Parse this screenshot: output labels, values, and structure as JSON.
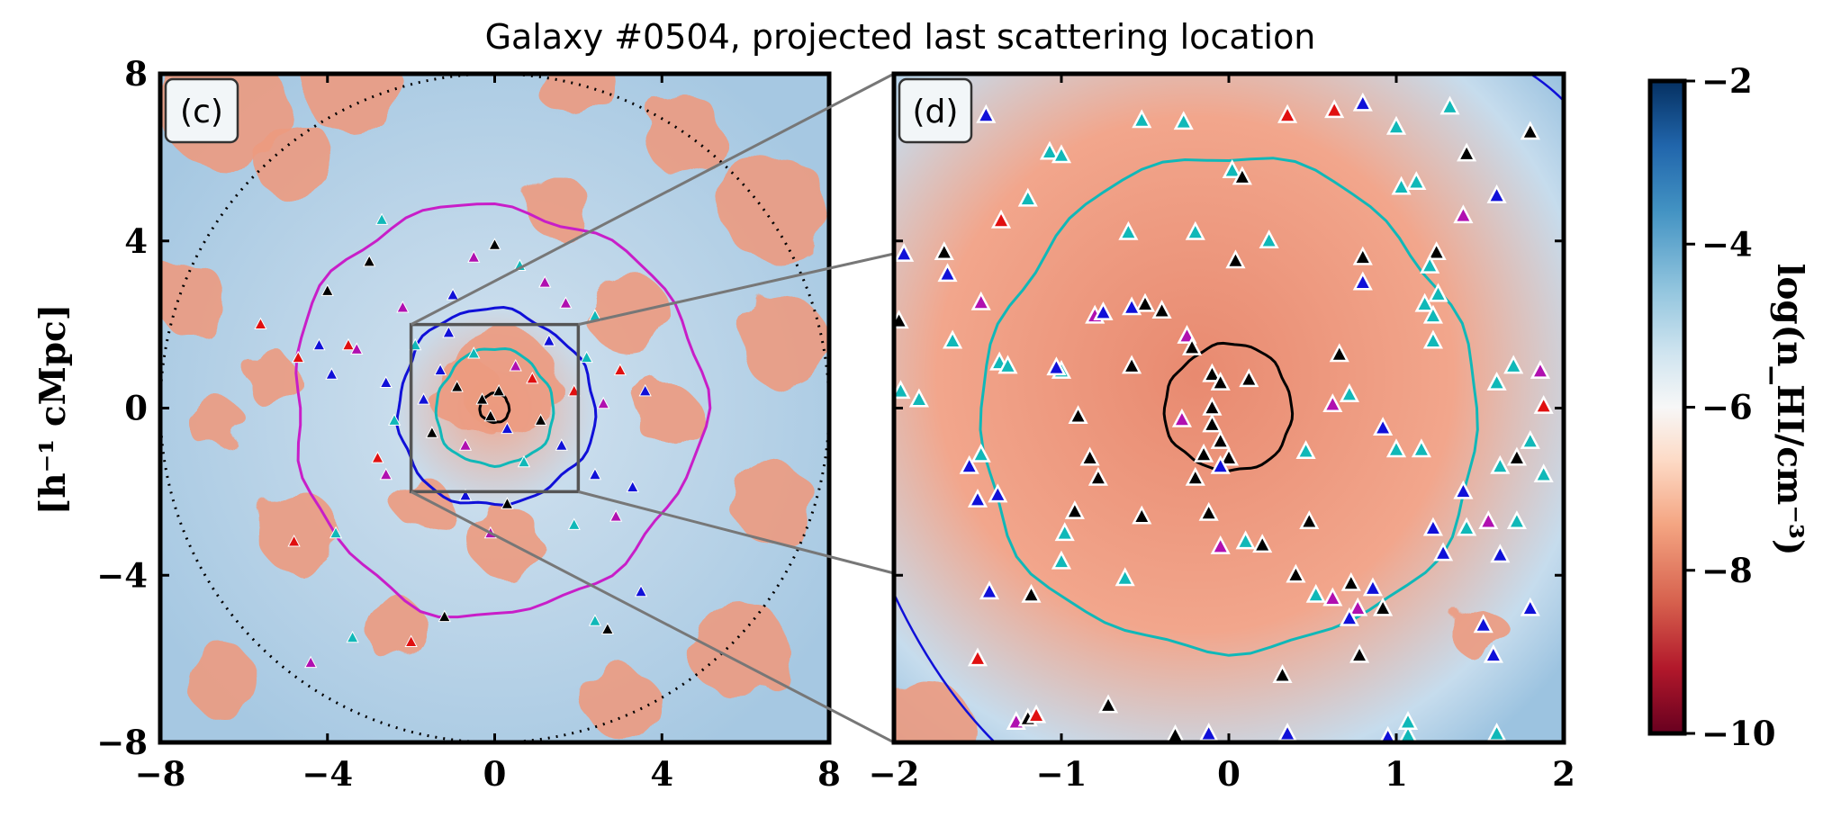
{
  "title": "Galaxy #0504, projected last scattering location",
  "chart_data": [
    {
      "type": "heatmap",
      "panel_label": "(c)",
      "xlim": [
        -8,
        8
      ],
      "ylim": [
        -8,
        8
      ],
      "xticks": [
        "−8",
        "−4",
        "0",
        "4",
        "8"
      ],
      "yticks": [
        "8",
        "4",
        "0",
        "−4",
        "−8"
      ],
      "ylabel": "[h⁻¹ cMpc]",
      "zoom_box": {
        "x": [
          -2,
          2
        ],
        "y": [
          -2,
          2
        ]
      },
      "dotted_circle_radius": 8,
      "contours": [
        {
          "color": "#c81ec8",
          "radius": 4.9
        },
        {
          "color": "#1010d8",
          "radius": 2.35
        },
        {
          "color": "#10b8b8",
          "radius": 1.4
        },
        {
          "color": "#000000",
          "radius": 0.35
        }
      ],
      "markers": [
        {
          "x": -5.6,
          "y": 2.0,
          "c": "#e01010"
        },
        {
          "x": -4.7,
          "y": 1.2,
          "c": "#e01010"
        },
        {
          "x": -4.2,
          "y": 1.5,
          "c": "#1010d8"
        },
        {
          "x": -3.9,
          "y": 0.8,
          "c": "#1010d8"
        },
        {
          "x": -3.5,
          "y": 1.5,
          "c": "#e01010"
        },
        {
          "x": -3.3,
          "y": 1.4,
          "c": "#b010b0"
        },
        {
          "x": -3.0,
          "y": 3.5,
          "c": "#000000"
        },
        {
          "x": -2.7,
          "y": 4.5,
          "c": "#10b8b8"
        },
        {
          "x": -2.6,
          "y": 0.6,
          "c": "#1010d8"
        },
        {
          "x": -2.4,
          "y": -0.3,
          "c": "#10b8b8"
        },
        {
          "x": -2.8,
          "y": -1.2,
          "c": "#e01010"
        },
        {
          "x": -2.6,
          "y": -1.6,
          "c": "#b010b0"
        },
        {
          "x": -4.0,
          "y": 2.8,
          "c": "#000000"
        },
        {
          "x": -4.8,
          "y": -3.2,
          "c": "#e01010"
        },
        {
          "x": -3.8,
          "y": -3.0,
          "c": "#10b8b8"
        },
        {
          "x": -2.2,
          "y": 2.4,
          "c": "#b010b0"
        },
        {
          "x": -1.9,
          "y": 1.5,
          "c": "#10b8b8"
        },
        {
          "x": -1.7,
          "y": 0.2,
          "c": "#1010d8"
        },
        {
          "x": -1.5,
          "y": -0.6,
          "c": "#000000"
        },
        {
          "x": -1.3,
          "y": 0.9,
          "c": "#1010d8"
        },
        {
          "x": -1.1,
          "y": 1.8,
          "c": "#1010d8"
        },
        {
          "x": -0.9,
          "y": 0.5,
          "c": "#000000"
        },
        {
          "x": -0.7,
          "y": -0.9,
          "c": "#b010b0"
        },
        {
          "x": -0.5,
          "y": 1.3,
          "c": "#10b8b8"
        },
        {
          "x": -0.3,
          "y": 0.2,
          "c": "#000000"
        },
        {
          "x": -0.1,
          "y": -0.2,
          "c": "#000000"
        },
        {
          "x": 0.1,
          "y": 0.4,
          "c": "#000000"
        },
        {
          "x": 0.3,
          "y": -0.5,
          "c": "#1010d8"
        },
        {
          "x": 0.5,
          "y": 1.0,
          "c": "#b010b0"
        },
        {
          "x": 0.7,
          "y": -1.3,
          "c": "#10b8b8"
        },
        {
          "x": 0.9,
          "y": 0.7,
          "c": "#e01010"
        },
        {
          "x": 1.1,
          "y": -0.3,
          "c": "#000000"
        },
        {
          "x": 1.3,
          "y": 1.6,
          "c": "#1010d8"
        },
        {
          "x": 1.6,
          "y": -0.9,
          "c": "#1010d8"
        },
        {
          "x": 1.9,
          "y": 0.4,
          "c": "#e01010"
        },
        {
          "x": 2.2,
          "y": 1.2,
          "c": "#10b8b8"
        },
        {
          "x": 2.4,
          "y": -1.6,
          "c": "#1010d8"
        },
        {
          "x": 2.6,
          "y": 0.1,
          "c": "#b010b0"
        },
        {
          "x": 0.0,
          "y": 3.9,
          "c": "#000000"
        },
        {
          "x": -0.5,
          "y": 3.6,
          "c": "#b010b0"
        },
        {
          "x": 0.6,
          "y": 3.4,
          "c": "#10b8b8"
        },
        {
          "x": 1.2,
          "y": 3.0,
          "c": "#b010b0"
        },
        {
          "x": -1.0,
          "y": 2.7,
          "c": "#1010d8"
        },
        {
          "x": 1.7,
          "y": 2.5,
          "c": "#b010b0"
        },
        {
          "x": 2.4,
          "y": 2.2,
          "c": "#10b8b8"
        },
        {
          "x": 2.9,
          "y": -2.6,
          "c": "#b010b0"
        },
        {
          "x": 3.0,
          "y": 0.9,
          "c": "#e01010"
        },
        {
          "x": 3.3,
          "y": -1.9,
          "c": "#1010d8"
        },
        {
          "x": 3.6,
          "y": 0.4,
          "c": "#1010d8"
        },
        {
          "x": 3.5,
          "y": -4.4,
          "c": "#1010d8"
        },
        {
          "x": -0.1,
          "y": -3.0,
          "c": "#b010b0"
        },
        {
          "x": -2.0,
          "y": -5.6,
          "c": "#e01010"
        },
        {
          "x": -1.2,
          "y": -5.0,
          "c": "#000000"
        },
        {
          "x": 2.4,
          "y": -5.1,
          "c": "#10b8b8"
        },
        {
          "x": 2.7,
          "y": -5.3,
          "c": "#000000"
        },
        {
          "x": -4.4,
          "y": -6.1,
          "c": "#b010b0"
        },
        {
          "x": -3.4,
          "y": -5.5,
          "c": "#10b8b8"
        },
        {
          "x": 0.3,
          "y": -2.3,
          "c": "#000000"
        },
        {
          "x": -0.7,
          "y": -2.1,
          "c": "#1010d8"
        },
        {
          "x": 1.9,
          "y": -2.8,
          "c": "#10b8b8"
        }
      ]
    },
    {
      "type": "heatmap",
      "panel_label": "(d)",
      "xlim": [
        -2,
        2
      ],
      "ylim": [
        -2,
        2
      ],
      "xticks": [
        "−2",
        "−1",
        "0",
        "1",
        "2"
      ],
      "contours": [
        {
          "color": "#10b8b8",
          "radius": 1.48
        },
        {
          "color": "#000000",
          "radius": 0.38
        }
      ],
      "markers": [
        {
          "x": -1.45,
          "y": 1.75,
          "c": "#1010d8"
        },
        {
          "x": -0.52,
          "y": 1.72,
          "c": "#10b8b8"
        },
        {
          "x": -0.27,
          "y": 1.71,
          "c": "#10b8b8"
        },
        {
          "x": 0.35,
          "y": 1.75,
          "c": "#e01010"
        },
        {
          "x": 0.63,
          "y": 1.78,
          "c": "#e01010"
        },
        {
          "x": 0.8,
          "y": 1.82,
          "c": "#1010d8"
        },
        {
          "x": 1.0,
          "y": 1.68,
          "c": "#10b8b8"
        },
        {
          "x": 1.32,
          "y": 1.8,
          "c": "#10b8b8"
        },
        {
          "x": 1.8,
          "y": 1.65,
          "c": "#000000"
        },
        {
          "x": -1.07,
          "y": 1.53,
          "c": "#10b8b8"
        },
        {
          "x": -1.0,
          "y": 1.51,
          "c": "#10b8b8"
        },
        {
          "x": 1.42,
          "y": 1.52,
          "c": "#000000"
        },
        {
          "x": -1.2,
          "y": 1.25,
          "c": "#10b8b8"
        },
        {
          "x": 0.02,
          "y": 1.42,
          "c": "#10b8b8"
        },
        {
          "x": 0.08,
          "y": 1.38,
          "c": "#000000"
        },
        {
          "x": 1.03,
          "y": 1.32,
          "c": "#10b8b8"
        },
        {
          "x": 1.12,
          "y": 1.35,
          "c": "#10b8b8"
        },
        {
          "x": 1.6,
          "y": 1.27,
          "c": "#1010d8"
        },
        {
          "x": -1.36,
          "y": 1.12,
          "c": "#e01010"
        },
        {
          "x": 1.4,
          "y": 1.15,
          "c": "#b010b0"
        },
        {
          "x": -0.6,
          "y": 1.05,
          "c": "#10b8b8"
        },
        {
          "x": -0.2,
          "y": 1.05,
          "c": "#10b8b8"
        },
        {
          "x": 0.24,
          "y": 1.0,
          "c": "#10b8b8"
        },
        {
          "x": 1.24,
          "y": 0.93,
          "c": "#000000"
        },
        {
          "x": -1.94,
          "y": 0.92,
          "c": "#1010d8"
        },
        {
          "x": -1.7,
          "y": 0.93,
          "c": "#000000"
        },
        {
          "x": 0.04,
          "y": 0.88,
          "c": "#000000"
        },
        {
          "x": 0.8,
          "y": 0.9,
          "c": "#000000"
        },
        {
          "x": 1.2,
          "y": 0.85,
          "c": "#10b8b8"
        },
        {
          "x": -1.68,
          "y": 0.8,
          "c": "#1010d8"
        },
        {
          "x": 0.8,
          "y": 0.75,
          "c": "#1010d8"
        },
        {
          "x": 1.25,
          "y": 0.68,
          "c": "#10b8b8"
        },
        {
          "x": -1.48,
          "y": 0.63,
          "c": "#b010b0"
        },
        {
          "x": -0.5,
          "y": 0.62,
          "c": "#000000"
        },
        {
          "x": -0.4,
          "y": 0.58,
          "c": "#000000"
        },
        {
          "x": 1.17,
          "y": 0.62,
          "c": "#10b8b8"
        },
        {
          "x": -1.97,
          "y": 0.52,
          "c": "#000000"
        },
        {
          "x": -0.8,
          "y": 0.55,
          "c": "#b010b0"
        },
        {
          "x": -0.75,
          "y": 0.57,
          "c": "#1010d8"
        },
        {
          "x": -0.58,
          "y": 0.6,
          "c": "#1010d8"
        },
        {
          "x": 1.22,
          "y": 0.55,
          "c": "#10b8b8"
        },
        {
          "x": -1.65,
          "y": 0.4,
          "c": "#10b8b8"
        },
        {
          "x": 1.22,
          "y": 0.4,
          "c": "#10b8b8"
        },
        {
          "x": -0.25,
          "y": 0.43,
          "c": "#b010b0"
        },
        {
          "x": -0.22,
          "y": 0.36,
          "c": "#000000"
        },
        {
          "x": 0.66,
          "y": 0.32,
          "c": "#000000"
        },
        {
          "x": -1.37,
          "y": 0.27,
          "c": "#10b8b8"
        },
        {
          "x": -1.32,
          "y": 0.25,
          "c": "#10b8b8"
        },
        {
          "x": 1.7,
          "y": 0.25,
          "c": "#10b8b8"
        },
        {
          "x": -1.0,
          "y": 0.22,
          "c": "#10b8b8"
        },
        {
          "x": -1.03,
          "y": 0.24,
          "c": "#1010d8"
        },
        {
          "x": -0.58,
          "y": 0.25,
          "c": "#000000"
        },
        {
          "x": 1.6,
          "y": 0.15,
          "c": "#10b8b8"
        },
        {
          "x": 1.86,
          "y": 0.22,
          "c": "#b010b0"
        },
        {
          "x": -0.1,
          "y": 0.2,
          "c": "#000000"
        },
        {
          "x": -0.05,
          "y": 0.15,
          "c": "#000000"
        },
        {
          "x": 0.12,
          "y": 0.17,
          "c": "#000000"
        },
        {
          "x": -0.1,
          "y": 0.0,
          "c": "#000000"
        },
        {
          "x": -1.96,
          "y": 0.1,
          "c": "#10b8b8"
        },
        {
          "x": -1.85,
          "y": 0.05,
          "c": "#10b8b8"
        },
        {
          "x": 0.62,
          "y": 0.02,
          "c": "#b010b0"
        },
        {
          "x": 0.72,
          "y": 0.08,
          "c": "#10b8b8"
        },
        {
          "x": 1.88,
          "y": 0.01,
          "c": "#e01010"
        },
        {
          "x": -0.9,
          "y": -0.05,
          "c": "#000000"
        },
        {
          "x": -0.28,
          "y": -0.07,
          "c": "#b010b0"
        },
        {
          "x": 0.92,
          "y": -0.12,
          "c": "#1010d8"
        },
        {
          "x": -0.1,
          "y": -0.1,
          "c": "#000000"
        },
        {
          "x": -0.05,
          "y": -0.2,
          "c": "#000000"
        },
        {
          "x": 0.46,
          "y": -0.26,
          "c": "#10b8b8"
        },
        {
          "x": 1.0,
          "y": -0.25,
          "c": "#10b8b8"
        },
        {
          "x": 1.8,
          "y": -0.2,
          "c": "#10b8b8"
        },
        {
          "x": -0.83,
          "y": -0.3,
          "c": "#000000"
        },
        {
          "x": -0.15,
          "y": -0.28,
          "c": "#000000"
        },
        {
          "x": 0.0,
          "y": -0.3,
          "c": "#000000"
        },
        {
          "x": 1.72,
          "y": -0.3,
          "c": "#000000"
        },
        {
          "x": 1.15,
          "y": -0.25,
          "c": "#10b8b8"
        },
        {
          "x": -1.55,
          "y": -0.35,
          "c": "#1010d8"
        },
        {
          "x": -1.48,
          "y": -0.28,
          "c": "#10b8b8"
        },
        {
          "x": -0.05,
          "y": -0.35,
          "c": "#1010d8"
        },
        {
          "x": -0.78,
          "y": -0.42,
          "c": "#000000"
        },
        {
          "x": -0.2,
          "y": -0.42,
          "c": "#000000"
        },
        {
          "x": 1.62,
          "y": -0.35,
          "c": "#10b8b8"
        },
        {
          "x": 1.88,
          "y": -0.4,
          "c": "#10b8b8"
        },
        {
          "x": -1.5,
          "y": -0.55,
          "c": "#1010d8"
        },
        {
          "x": -1.38,
          "y": -0.52,
          "c": "#1010d8"
        },
        {
          "x": 1.4,
          "y": -0.5,
          "c": "#1010d8"
        },
        {
          "x": -0.92,
          "y": -0.62,
          "c": "#000000"
        },
        {
          "x": 0.48,
          "y": -0.68,
          "c": "#000000"
        },
        {
          "x": -0.52,
          "y": -0.65,
          "c": "#000000"
        },
        {
          "x": 1.72,
          "y": -0.68,
          "c": "#10b8b8"
        },
        {
          "x": -0.98,
          "y": -0.75,
          "c": "#10b8b8"
        },
        {
          "x": -0.12,
          "y": -0.63,
          "c": "#000000"
        },
        {
          "x": 1.55,
          "y": -0.68,
          "c": "#b010b0"
        },
        {
          "x": 1.42,
          "y": -0.72,
          "c": "#10b8b8"
        },
        {
          "x": 1.28,
          "y": -0.87,
          "c": "#1010d8"
        },
        {
          "x": 0.2,
          "y": -0.82,
          "c": "#000000"
        },
        {
          "x": -0.05,
          "y": -0.83,
          "c": "#b010b0"
        },
        {
          "x": 0.1,
          "y": -0.8,
          "c": "#10b8b8"
        },
        {
          "x": 1.22,
          "y": -0.72,
          "c": "#1010d8"
        },
        {
          "x": -1.0,
          "y": -0.92,
          "c": "#10b8b8"
        },
        {
          "x": 1.62,
          "y": -0.88,
          "c": "#1010d8"
        },
        {
          "x": -0.62,
          "y": -1.02,
          "c": "#10b8b8"
        },
        {
          "x": 0.4,
          "y": -1.0,
          "c": "#000000"
        },
        {
          "x": -1.18,
          "y": -1.12,
          "c": "#000000"
        },
        {
          "x": -1.43,
          "y": -1.1,
          "c": "#1010d8"
        },
        {
          "x": 0.73,
          "y": -1.05,
          "c": "#000000"
        },
        {
          "x": 0.52,
          "y": -1.12,
          "c": "#10b8b8"
        },
        {
          "x": 0.86,
          "y": -1.08,
          "c": "#1010d8"
        },
        {
          "x": 0.62,
          "y": -1.14,
          "c": "#b010b0"
        },
        {
          "x": 0.77,
          "y": -1.2,
          "c": "#b010b0"
        },
        {
          "x": 0.92,
          "y": -1.2,
          "c": "#000000"
        },
        {
          "x": 0.72,
          "y": -1.26,
          "c": "#1010d8"
        },
        {
          "x": 1.8,
          "y": -1.2,
          "c": "#1010d8"
        },
        {
          "x": 1.52,
          "y": -1.3,
          "c": "#1010d8"
        },
        {
          "x": 1.58,
          "y": -1.48,
          "c": "#1010d8"
        },
        {
          "x": 0.78,
          "y": -1.48,
          "c": "#000000"
        },
        {
          "x": -1.5,
          "y": -1.5,
          "c": "#e01010"
        },
        {
          "x": 0.32,
          "y": -1.6,
          "c": "#000000"
        },
        {
          "x": -1.27,
          "y": -1.88,
          "c": "#b010b0"
        },
        {
          "x": -1.2,
          "y": -1.86,
          "c": "#000000"
        },
        {
          "x": -1.15,
          "y": -1.84,
          "c": "#e01010"
        },
        {
          "x": -0.72,
          "y": -1.78,
          "c": "#000000"
        },
        {
          "x": -0.32,
          "y": -1.96,
          "c": "#000000"
        },
        {
          "x": -0.12,
          "y": -1.95,
          "c": "#1010d8"
        },
        {
          "x": 0.35,
          "y": -1.95,
          "c": "#1010d8"
        },
        {
          "x": 0.95,
          "y": -1.97,
          "c": "#1010d8"
        },
        {
          "x": 1.07,
          "y": -1.96,
          "c": "#10b8b8"
        },
        {
          "x": 1.6,
          "y": -1.95,
          "c": "#10b8b8"
        },
        {
          "x": 1.07,
          "y": -1.88,
          "c": "#10b8b8"
        }
      ]
    }
  ],
  "colorbar": {
    "label": "log(n_HI/cm⁻³)",
    "range": [
      -10,
      -2
    ],
    "ticks": [
      "−2",
      "−4",
      "−6",
      "−8",
      "−10"
    ],
    "colormap": "RdBu",
    "colors": [
      "#67001f",
      "#b2182b",
      "#d6604d",
      "#f4a582",
      "#fddbc7",
      "#f7f7f7",
      "#d1e5f0",
      "#92c5de",
      "#4393c3",
      "#2166ac",
      "#053061"
    ]
  }
}
